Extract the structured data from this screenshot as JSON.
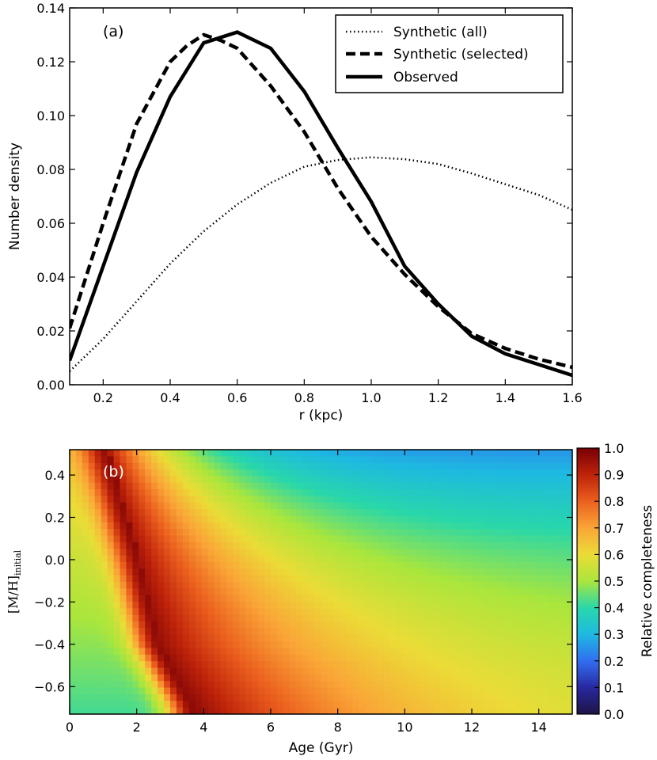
{
  "chart_data": [
    {
      "type": "line",
      "panel_label": "(a)",
      "xlabel": "r (kpc)",
      "ylabel": "Number density",
      "xlim": [
        0.1,
        1.6
      ],
      "ylim": [
        0.0,
        0.14
      ],
      "xticks": [
        "0.2",
        "0.4",
        "0.6",
        "0.8",
        "1.0",
        "1.2",
        "1.4",
        "1.6"
      ],
      "xtick_values": [
        0.2,
        0.4,
        0.6,
        0.8,
        1.0,
        1.2,
        1.4,
        1.6
      ],
      "yticks": [
        "0.00",
        "0.02",
        "0.04",
        "0.06",
        "0.08",
        "0.10",
        "0.12",
        "0.14"
      ],
      "ytick_values": [
        0.0,
        0.02,
        0.04,
        0.06,
        0.08,
        0.1,
        0.12,
        0.14
      ],
      "legend_position": "top-right",
      "series": [
        {
          "name": "Synthetic (all)",
          "style": "dotted",
          "x": [
            0.1,
            0.2,
            0.3,
            0.4,
            0.5,
            0.6,
            0.7,
            0.8,
            0.9,
            1.0,
            1.1,
            1.2,
            1.3,
            1.4,
            1.5,
            1.6
          ],
          "y": [
            0.005,
            0.017,
            0.031,
            0.045,
            0.057,
            0.067,
            0.075,
            0.081,
            0.0835,
            0.0845,
            0.0838,
            0.082,
            0.0785,
            0.0745,
            0.0705,
            0.065
          ]
        },
        {
          "name": "Synthetic (selected)",
          "style": "dashed",
          "x": [
            0.1,
            0.2,
            0.3,
            0.4,
            0.45,
            0.5,
            0.55,
            0.6,
            0.7,
            0.8,
            0.9,
            1.0,
            1.1,
            1.2,
            1.3,
            1.4,
            1.5,
            1.6
          ],
          "y": [
            0.021,
            0.06,
            0.097,
            0.12,
            0.126,
            0.13,
            0.128,
            0.125,
            0.111,
            0.094,
            0.073,
            0.055,
            0.041,
            0.029,
            0.019,
            0.0135,
            0.0095,
            0.0065
          ]
        },
        {
          "name": "Observed",
          "style": "solid",
          "x": [
            0.1,
            0.2,
            0.3,
            0.4,
            0.5,
            0.6,
            0.7,
            0.8,
            0.9,
            1.0,
            1.1,
            1.2,
            1.3,
            1.4,
            1.5,
            1.6
          ],
          "y": [
            0.009,
            0.044,
            0.079,
            0.107,
            0.127,
            0.131,
            0.125,
            0.109,
            0.088,
            0.068,
            0.044,
            0.03,
            0.018,
            0.0115,
            0.0075,
            0.0035
          ]
        }
      ]
    },
    {
      "type": "heatmap",
      "panel_label": "(b)",
      "xlabel": "Age (Gyr)",
      "ylabel_main": "[M/H]",
      "ylabel_sub": "initial",
      "xlim": [
        0,
        15
      ],
      "ylim": [
        -0.73,
        0.52
      ],
      "xticks": [
        "0",
        "2",
        "4",
        "6",
        "8",
        "10",
        "12",
        "14"
      ],
      "xtick_values": [
        0,
        2,
        4,
        6,
        8,
        10,
        12,
        14
      ],
      "yticks": [
        "0.4",
        "0.2",
        "0.0",
        "−0.2",
        "−0.4",
        "−0.6"
      ],
      "ytick_values": [
        0.4,
        0.2,
        0.0,
        -0.2,
        -0.4,
        -0.6
      ],
      "colorbar_label": "Relative completeness",
      "colorbar_ticks": [
        "1.0",
        "0.9",
        "0.8",
        "0.7",
        "0.6",
        "0.5",
        "0.4",
        "0.3",
        "0.2",
        "0.1",
        "0.0"
      ],
      "colorbar_tick_values": [
        1.0,
        0.9,
        0.8,
        0.7,
        0.6,
        0.5,
        0.4,
        0.3,
        0.2,
        0.1,
        0.0
      ],
      "colorbar_range": [
        0.0,
        1.0
      ],
      "peak_ridge": [
        {
          "metallicity": 0.5,
          "age": 1.2
        },
        {
          "metallicity": 0.0,
          "age": 2.1
        },
        {
          "metallicity": -0.4,
          "age": 2.7
        },
        {
          "metallicity": -0.7,
          "age": 3.7
        }
      ],
      "corner_values": {
        "young_metal_poor": 0.42,
        "old_metal_rich": 0.24,
        "old_metal_poor": 0.52
      }
    }
  ]
}
